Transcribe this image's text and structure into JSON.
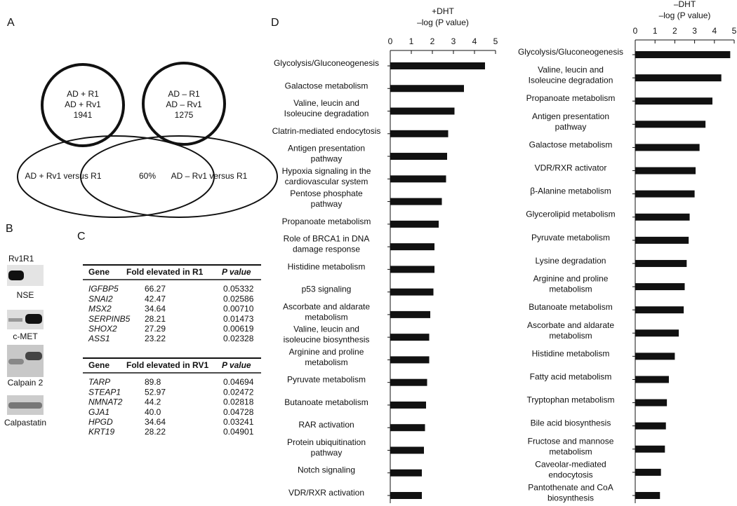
{
  "panel_a": {
    "letter": "A",
    "circle_left": [
      "AD + R1",
      "AD + Rv1",
      "1941"
    ],
    "circle_right": [
      "AD – R1",
      "AD – Rv1",
      "1275"
    ],
    "venn_left": "AD + Rv1 versus R1",
    "venn_overlap": "60%",
    "venn_right": "AD – Rv1 versus R1"
  },
  "panel_b": {
    "letter": "B",
    "lanes": [
      "Rv1",
      "R1"
    ],
    "blots": [
      "NSE",
      "c-MET",
      "Calpain 2",
      "Calpastatin"
    ]
  },
  "panel_c": {
    "letter": "C",
    "tables": [
      {
        "header": [
          "Gene",
          "Fold elevated in R1",
          "P value"
        ],
        "rows": [
          [
            "IGFBP5",
            "66.27",
            "0.05332"
          ],
          [
            "SNAI2",
            "42.47",
            "0.02586"
          ],
          [
            "MSX2",
            "34.64",
            "0.00710"
          ],
          [
            "SERPINB5",
            "28.21",
            "0.01473"
          ],
          [
            "SHOX2",
            "27.29",
            "0.00619"
          ],
          [
            "ASS1",
            "23.22",
            "0.02328"
          ]
        ]
      },
      {
        "header": [
          "Gene",
          "Fold elevated in RV1",
          "P value"
        ],
        "rows": [
          [
            "TARP",
            "89.8",
            "0.04694"
          ],
          [
            "STEAP1",
            "52.97",
            "0.02472"
          ],
          [
            "NMNAT2",
            "44.2",
            "0.02818"
          ],
          [
            "GJA1",
            "40.0",
            "0.04728"
          ],
          [
            "HPGD",
            "34.64",
            "0.03241"
          ],
          [
            "KRT19",
            "28.22",
            "0.04901"
          ]
        ]
      }
    ]
  },
  "panel_d_letter": "D",
  "chart_data": [
    {
      "type": "hbar",
      "title": "+DHT",
      "x_label": "–log (P value)",
      "color": "#111111",
      "xlim": [
        0,
        5
      ],
      "xticks": [
        0,
        1,
        2,
        3,
        4,
        5
      ],
      "categories": [
        "Glycolysis/Gluconeogenesis",
        "Galactose metabolism",
        "Valine, leucin and\nIsoleucine degradation",
        "Clatrin-mediated endocytosis",
        "Antigen presentation\npathway",
        "Hypoxia signaling in the\ncardiovascular system",
        "Pentose phosphate\npathway",
        "Propanoate metabolism",
        "Role of BRCA1 in DNA\ndamage response",
        "Histidine metabolism",
        "p53 signaling",
        "Ascorbate and aldarate\nmetabolism",
        "Valine, leucin and\nisoleucine biosynthesis",
        "Arginine and proline\nmetabolism",
        "Pyruvate metabolism",
        "Butanoate metabolism",
        "RAR activation",
        "Protein ubiquitination\npathway",
        "Notch signaling",
        "VDR/RXR activation"
      ],
      "values": [
        4.5,
        3.5,
        3.05,
        2.75,
        2.7,
        2.65,
        2.45,
        2.3,
        2.1,
        2.1,
        2.05,
        1.9,
        1.85,
        1.85,
        1.75,
        1.7,
        1.65,
        1.6,
        1.5,
        1.5
      ]
    },
    {
      "type": "hbar",
      "title": "–DHT",
      "x_label": "–log (P value)",
      "color": "#111111",
      "xlim": [
        0,
        5
      ],
      "xticks": [
        0,
        1,
        2,
        3,
        4,
        5
      ],
      "categories": [
        "Glycolysis/Gluconeogenesis",
        "Valine, leucin and\nIsoleucine degradation",
        "Propanoate metabolism",
        "Antigen presentation\npathway",
        "Galactose metabolism",
        "VDR/RXR activator",
        "β-Alanine metabolism",
        "Glycerolipid metabolism",
        "Pyruvate metabolism",
        "Lysine degradation",
        "Arginine and proline\nmetabolism",
        "Butanoate metabolism",
        "Ascorbate and aldarate\nmetabolism",
        "Histidine metabolism",
        "Fatty acid metabolism",
        "Tryptophan metabolism",
        "Bile acid biosynthesis",
        "Fructose and mannose\nmetabolism",
        "Caveolar-mediated\nendocytosis",
        "Pantothenate and CoA\nbiosynthesis"
      ],
      "values": [
        4.8,
        4.35,
        3.9,
        3.55,
        3.25,
        3.05,
        3.0,
        2.75,
        2.7,
        2.6,
        2.5,
        2.45,
        2.2,
        2.0,
        1.7,
        1.6,
        1.55,
        1.5,
        1.3,
        1.25
      ]
    }
  ]
}
